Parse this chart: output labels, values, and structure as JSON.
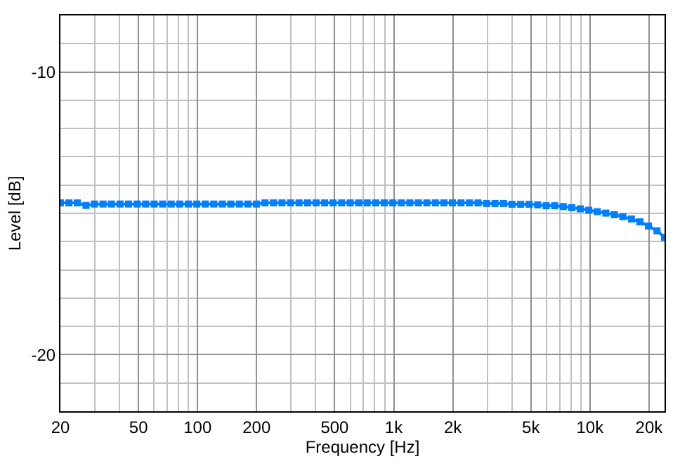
{
  "chart_data": {
    "type": "line",
    "xlabel": "Frequency [Hz]",
    "ylabel": "Level [dB]",
    "log": "x",
    "x": [
      20,
      22.1,
      24.4,
      27.0,
      29.8,
      33.0,
      36.4,
      40.3,
      44.5,
      49.2,
      54.4,
      60.1,
      66.4,
      73.4,
      81.1,
      89.7,
      99.1,
      109.5,
      121,
      133.8,
      147.8,
      163.4,
      180.6,
      199.6,
      220.6,
      243.8,
      269.4,
      297.8,
      329.1,
      363.7,
      402,
      444.3,
      491,
      542.6,
      599.7,
      662.8,
      732.5,
      809.6,
      894.7,
      988.8,
      1093,
      1208,
      1335,
      1475,
      1630,
      1802,
      1991,
      2201,
      2432,
      2688,
      2971,
      3283,
      3629,
      4010,
      4432,
      4898,
      5414,
      5983,
      6613,
      7308,
      8077,
      8927,
      9866,
      10904,
      12051,
      13318,
      14719,
      16268,
      17979,
      19871,
      21961,
      24000
    ],
    "series": [
      {
        "color": "#0080ff",
        "values": [
          -14.63,
          -14.63,
          -14.63,
          -14.72,
          -14.67,
          -14.67,
          -14.67,
          -14.67,
          -14.67,
          -14.67,
          -14.67,
          -14.67,
          -14.67,
          -14.67,
          -14.67,
          -14.67,
          -14.67,
          -14.67,
          -14.67,
          -14.67,
          -14.67,
          -14.67,
          -14.67,
          -14.67,
          -14.63,
          -14.63,
          -14.63,
          -14.63,
          -14.63,
          -14.63,
          -14.63,
          -14.63,
          -14.63,
          -14.63,
          -14.63,
          -14.63,
          -14.63,
          -14.63,
          -14.63,
          -14.63,
          -14.63,
          -14.63,
          -14.63,
          -14.63,
          -14.63,
          -14.63,
          -14.63,
          -14.63,
          -14.63,
          -14.63,
          -14.65,
          -14.65,
          -14.65,
          -14.68,
          -14.68,
          -14.68,
          -14.7,
          -14.73,
          -14.73,
          -14.76,
          -14.8,
          -14.84,
          -14.89,
          -14.94,
          -14.99,
          -15.05,
          -15.12,
          -15.2,
          -15.3,
          -15.45,
          -15.62,
          -15.85
        ]
      }
    ],
    "xlim": [
      20,
      24000
    ],
    "xticks": [
      20,
      50,
      100,
      200,
      500,
      {
        "value": 1000,
        "label": "1k"
      },
      {
        "value": 2000,
        "label": "2k"
      },
      {
        "value": 5000,
        "label": "5k"
      },
      {
        "value": 10000,
        "label": "10k"
      },
      {
        "value": 20000,
        "label": "20k"
      }
    ],
    "ylim": [
      -22,
      -8
    ],
    "yticks": [
      -10,
      -20
    ],
    "grid": true,
    "marker": "square",
    "line_style": "solid"
  }
}
